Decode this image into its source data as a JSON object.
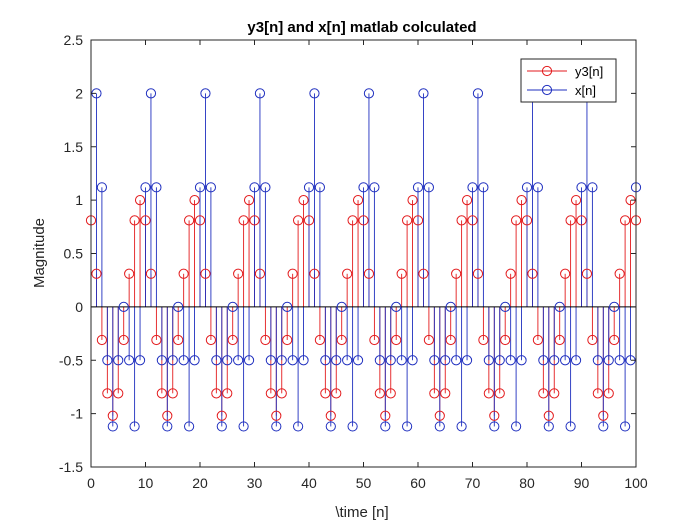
{
  "chart_data": {
    "type": "stem",
    "title": "y3[n] and x[n] matlab colculated",
    "xlabel": "\\time [n]",
    "ylabel": "Magnitude",
    "xlim": [
      0,
      100
    ],
    "ylim": [
      -1.5,
      2.5
    ],
    "xticks": [
      "0",
      "10",
      "20",
      "30",
      "40",
      "50",
      "60",
      "70",
      "80",
      "90",
      "100"
    ],
    "yticks": [
      "-1.5",
      "-1",
      "-0.5",
      "0",
      "0.5",
      "1",
      "1.5",
      "2",
      "2.5"
    ],
    "grid": false,
    "legend_location": "top-right",
    "series": [
      {
        "name": "y3[n]",
        "color": "#e31a1c",
        "marker": "circle",
        "x": [
          0,
          1,
          2,
          3,
          4,
          5,
          6,
          7,
          8,
          9,
          10,
          11,
          12,
          13,
          14,
          15,
          16,
          17,
          18,
          19,
          20,
          21,
          22,
          23,
          24,
          25,
          26,
          27,
          28,
          29,
          30,
          31,
          32,
          33,
          34,
          35,
          36,
          37,
          38,
          39,
          40,
          41,
          42,
          43,
          44,
          45,
          46,
          47,
          48,
          49,
          50,
          51,
          52,
          53,
          54,
          55,
          56,
          57,
          58,
          59,
          60,
          61,
          62,
          63,
          64,
          65,
          66,
          67,
          68,
          69,
          70,
          71,
          72,
          73,
          74,
          75,
          76,
          77,
          78,
          79,
          80,
          81,
          82,
          83,
          84,
          85,
          86,
          87,
          88,
          89,
          90,
          91,
          92,
          93,
          94,
          95,
          96,
          97,
          98,
          99,
          100
        ],
        "values": [
          0.81,
          0.31,
          -0.31,
          -0.81,
          -1.02,
          -0.81,
          -0.31,
          0.31,
          0.81,
          1.0,
          0.81,
          0.31,
          -0.31,
          -0.81,
          -1.02,
          -0.81,
          -0.31,
          0.31,
          0.81,
          1.0,
          0.81,
          0.31,
          -0.31,
          -0.81,
          -1.02,
          -0.81,
          -0.31,
          0.31,
          0.81,
          1.0,
          0.81,
          0.31,
          -0.31,
          -0.81,
          -1.02,
          -0.81,
          -0.31,
          0.31,
          0.81,
          1.0,
          0.81,
          0.31,
          -0.31,
          -0.81,
          -1.02,
          -0.81,
          -0.31,
          0.31,
          0.81,
          1.0,
          0.81,
          0.31,
          -0.31,
          -0.81,
          -1.02,
          -0.81,
          -0.31,
          0.31,
          0.81,
          1.0,
          0.81,
          0.31,
          -0.31,
          -0.81,
          -1.02,
          -0.81,
          -0.31,
          0.31,
          0.81,
          1.0,
          0.81,
          0.31,
          -0.31,
          -0.81,
          -1.02,
          -0.81,
          -0.31,
          0.31,
          0.81,
          1.0,
          0.81,
          0.31,
          -0.31,
          -0.81,
          -1.02,
          -0.81,
          -0.31,
          0.31,
          0.81,
          1.0,
          0.81,
          0.31,
          -0.31,
          -0.81,
          -1.02,
          -0.81,
          -0.31,
          0.31,
          0.81,
          1.0,
          0.81
        ]
      },
      {
        "name": "x[n]",
        "color": "#1f2fbf",
        "marker": "circle",
        "x": [
          1,
          2,
          3,
          4,
          5,
          6,
          7,
          8,
          9,
          10,
          11,
          12,
          13,
          14,
          15,
          16,
          17,
          18,
          19,
          20,
          21,
          22,
          23,
          24,
          25,
          26,
          27,
          28,
          29,
          30,
          31,
          32,
          33,
          34,
          35,
          36,
          37,
          38,
          39,
          40,
          41,
          42,
          43,
          44,
          45,
          46,
          47,
          48,
          49,
          50,
          51,
          52,
          53,
          54,
          55,
          56,
          57,
          58,
          59,
          60,
          61,
          62,
          63,
          64,
          65,
          66,
          67,
          68,
          69,
          70,
          71,
          72,
          73,
          74,
          75,
          76,
          77,
          78,
          79,
          80,
          81,
          82,
          83,
          84,
          85,
          86,
          87,
          88,
          89,
          90,
          91,
          92,
          93,
          94,
          95,
          96,
          97,
          98,
          99,
          100
        ],
        "values": [
          2,
          1.12,
          -0.5,
          -1.12,
          -0.5,
          0,
          -0.5,
          -1.12,
          -0.5,
          1.12,
          2,
          1.12,
          -0.5,
          -1.12,
          -0.5,
          0,
          -0.5,
          -1.12,
          -0.5,
          1.12,
          2,
          1.12,
          -0.5,
          -1.12,
          -0.5,
          0,
          -0.5,
          -1.12,
          -0.5,
          1.12,
          2,
          1.12,
          -0.5,
          -1.12,
          -0.5,
          0,
          -0.5,
          -1.12,
          -0.5,
          1.12,
          2,
          1.12,
          -0.5,
          -1.12,
          -0.5,
          0,
          -0.5,
          -1.12,
          -0.5,
          1.12,
          2,
          1.12,
          -0.5,
          -1.12,
          -0.5,
          0,
          -0.5,
          -1.12,
          -0.5,
          1.12,
          2,
          1.12,
          -0.5,
          -1.12,
          -0.5,
          0,
          -0.5,
          -1.12,
          -0.5,
          1.12,
          2,
          1.12,
          -0.5,
          -1.12,
          -0.5,
          0,
          -0.5,
          -1.12,
          -0.5,
          1.12,
          2,
          1.12,
          -0.5,
          -1.12,
          -0.5,
          0,
          -0.5,
          -1.12,
          -0.5,
          1.12,
          2,
          1.12,
          -0.5,
          -1.12,
          -0.5,
          0,
          -0.5,
          -1.12,
          -0.5,
          1.12
        ]
      }
    ]
  }
}
